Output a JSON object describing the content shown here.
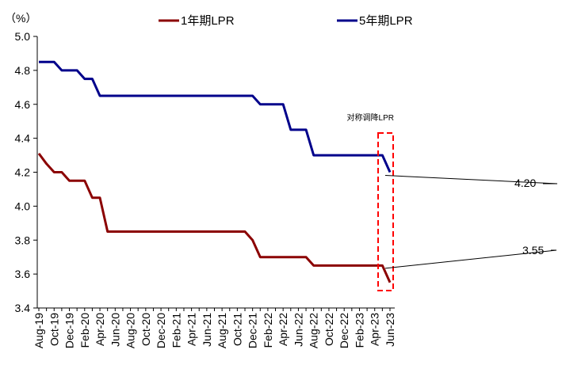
{
  "chart_data": {
    "type": "line",
    "ylabel": "（%）",
    "ylim": [
      3.4,
      5.0
    ],
    "y_ticks": [
      "5.0",
      "4.8",
      "4.6",
      "4.4",
      "4.2",
      "4.0",
      "3.8",
      "3.6",
      "3.4"
    ],
    "x_ticks": [
      "Aug-19",
      "Oct-19",
      "Dec-19",
      "Feb-20",
      "Apr-20",
      "Jun-20",
      "Aug-20",
      "Oct-20",
      "Dec-20",
      "Feb-21",
      "Apr-21",
      "Jun-21",
      "Aug-21",
      "Oct-21",
      "Dec-21",
      "Feb-22",
      "Apr-22",
      "Jun-22",
      "Aug-22",
      "Oct-22",
      "Dec-22",
      "Feb-23",
      "Apr-23",
      "Jun-23"
    ],
    "grid": false,
    "legend_position": "top",
    "series": [
      {
        "name": "1年期LPR",
        "color": "#8b0000",
        "points": [
          [
            "2019-08",
            4.31
          ],
          [
            "2019-09",
            4.25
          ],
          [
            "2019-10",
            4.2
          ],
          [
            "2019-11",
            4.2
          ],
          [
            "2019-12",
            4.15
          ],
          [
            "2020-01",
            4.15
          ],
          [
            "2020-02",
            4.15
          ],
          [
            "2020-03",
            4.05
          ],
          [
            "2020-04",
            4.05
          ],
          [
            "2020-05",
            3.85
          ],
          [
            "2020-06",
            3.85
          ],
          [
            "2021-11",
            3.85
          ],
          [
            "2021-12",
            3.8
          ],
          [
            "2022-01",
            3.7
          ],
          [
            "2022-07",
            3.7
          ],
          [
            "2022-08",
            3.65
          ],
          [
            "2023-05",
            3.65
          ],
          [
            "2023-06",
            3.55
          ]
        ]
      },
      {
        "name": "5年期LPR",
        "color": "#00008b",
        "points": [
          [
            "2019-08",
            4.85
          ],
          [
            "2019-10",
            4.85
          ],
          [
            "2019-11",
            4.8
          ],
          [
            "2020-01",
            4.8
          ],
          [
            "2020-02",
            4.75
          ],
          [
            "2020-03",
            4.75
          ],
          [
            "2020-04",
            4.65
          ],
          [
            "2021-11",
            4.65
          ],
          [
            "2021-12",
            4.65
          ],
          [
            "2022-01",
            4.6
          ],
          [
            "2022-04",
            4.6
          ],
          [
            "2022-05",
            4.45
          ],
          [
            "2022-07",
            4.45
          ],
          [
            "2022-08",
            4.3
          ],
          [
            "2023-05",
            4.3
          ],
          [
            "2023-06",
            4.2
          ]
        ]
      }
    ],
    "annotations": {
      "box_label": "对称调降LPR",
      "label_5y": "4.20",
      "label_1y": "3.55"
    }
  }
}
